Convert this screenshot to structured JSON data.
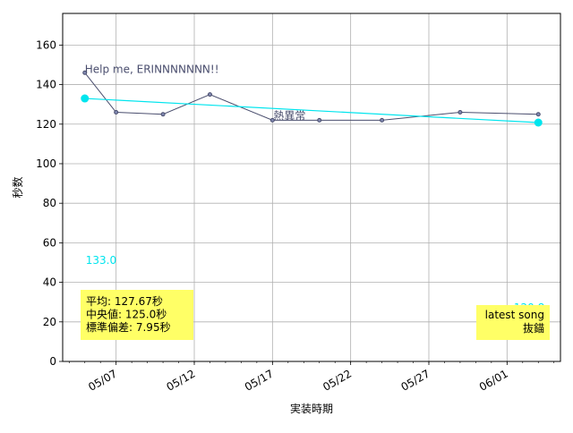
{
  "chart_data": {
    "type": "line",
    "xlabel": "実装時期",
    "ylabel": "秒数",
    "x_type": "date",
    "xlim": [
      "2023-05-03T14:00",
      "2023-06-04T10:00"
    ],
    "ylim": [
      0,
      176
    ],
    "grid": true,
    "x_ticks": [
      {
        "date": "2023-05-07",
        "label": "05/07"
      },
      {
        "date": "2023-05-12",
        "label": "05/12"
      },
      {
        "date": "2023-05-17",
        "label": "05/17"
      },
      {
        "date": "2023-05-22",
        "label": "05/22"
      },
      {
        "date": "2023-05-27",
        "label": "05/27"
      },
      {
        "date": "2023-06-01",
        "label": "06/01"
      }
    ],
    "y_ticks": [
      0,
      20,
      40,
      60,
      80,
      100,
      120,
      140,
      160
    ],
    "series": [
      {
        "style": "line-markers",
        "color": "#4a4e6e",
        "x": [
          "2023-05-05",
          "2023-05-07",
          "2023-05-10",
          "2023-05-13",
          "2023-05-17",
          "2023-05-20",
          "2023-05-24",
          "2023-05-29",
          "2023-06-03"
        ],
        "y": [
          146,
          126,
          125,
          135,
          122,
          122,
          122,
          126,
          125
        ]
      },
      {
        "style": "trend",
        "color": "#00e5ee",
        "x": [
          "2023-05-05",
          "2023-06-03"
        ],
        "y": [
          133.0,
          120.8
        ]
      }
    ],
    "annotations": [
      {
        "text": "Help me, ERINNNNNNN!!",
        "x": "2023-05-05",
        "y": 146,
        "color": "#4a4e6e"
      },
      {
        "text": "熱異常",
        "x": "2023-05-17",
        "y": 122,
        "color": "#4a4e6e"
      },
      {
        "text": "133.0",
        "x": "2023-05-05",
        "y": 133.0,
        "color": "#00e5ee"
      },
      {
        "text": "120.8",
        "x": "2023-06-03",
        "y": 120.8,
        "color": "#00e5ee"
      }
    ],
    "stats_box": {
      "lines": [
        "平均: 127.67秒",
        "中央値: 125.0秒",
        "標準偏差:   7.95秒"
      ],
      "background": "#ffff66"
    },
    "latest_box": {
      "lines": [
        "latest song",
        "抜錨"
      ],
      "background": "#ffff66"
    }
  }
}
